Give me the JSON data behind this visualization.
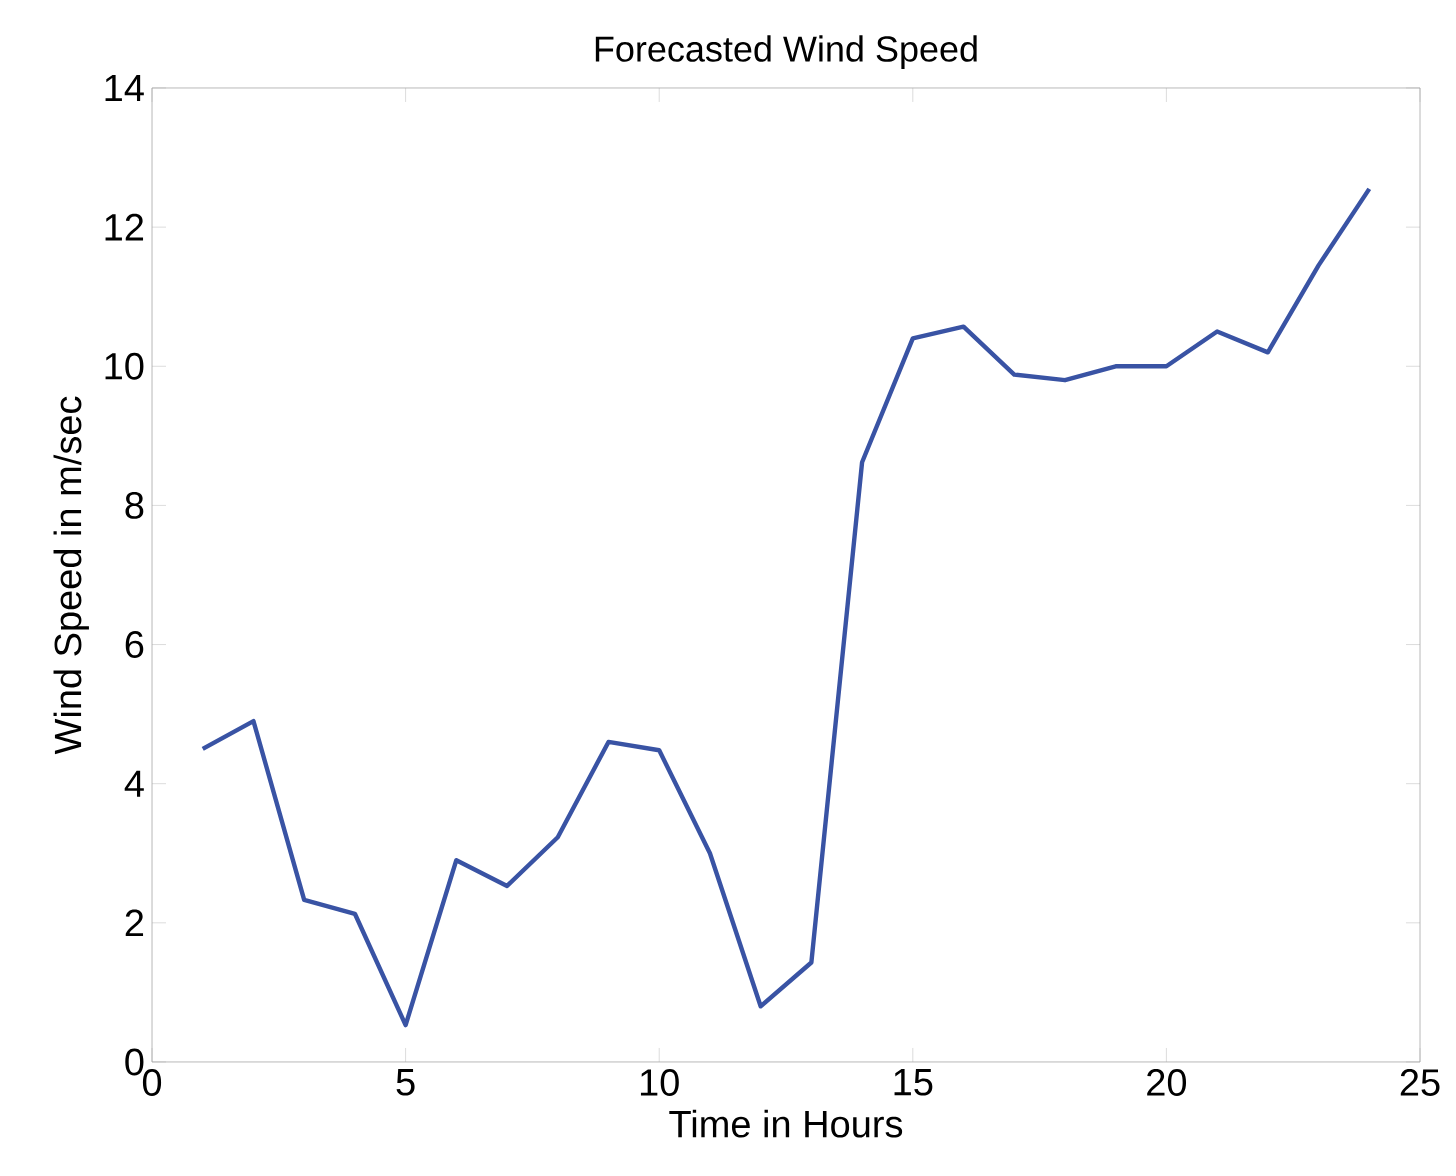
{
  "chart_data": {
    "type": "line",
    "title": "Forecasted Wind Speed",
    "xlabel": "Time in Hours",
    "ylabel": "Wind Speed in m/sec",
    "x": [
      1,
      2,
      3,
      4,
      5,
      6,
      7,
      8,
      9,
      10,
      11,
      12,
      13,
      14,
      15,
      16,
      17,
      18,
      19,
      20,
      21,
      22,
      23,
      24
    ],
    "series": [
      {
        "color": "#3953a4",
        "values": [
          4.5,
          4.9,
          2.33,
          2.13,
          0.53,
          2.9,
          2.53,
          3.23,
          4.6,
          4.48,
          3.0,
          0.8,
          1.43,
          8.62,
          10.4,
          10.57,
          9.88,
          9.8,
          10.0,
          10.0,
          10.5,
          10.2,
          11.45,
          12.55
        ]
      }
    ],
    "xlim": [
      0,
      25
    ],
    "xticks": [
      0,
      5,
      10,
      15,
      20,
      25
    ],
    "ylim": [
      0,
      14
    ],
    "yticks": [
      0,
      2,
      4,
      6,
      8,
      10,
      12,
      14
    ],
    "marker": "none",
    "line_style": "solid"
  }
}
